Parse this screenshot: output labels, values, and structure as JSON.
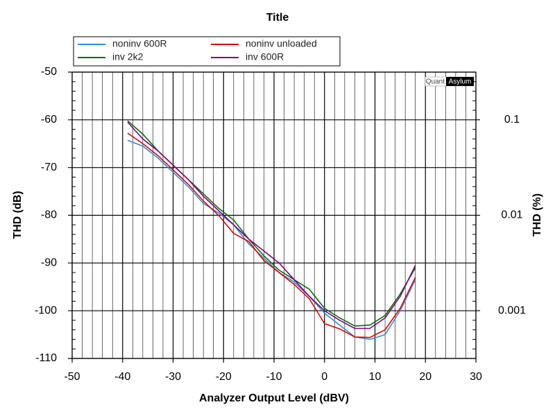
{
  "chart_data": {
    "type": "line",
    "title": "Title",
    "xlabel": "Analyzer Output Level (dBV)",
    "ylabel": "THD (dB)",
    "y2label": "THD (%)",
    "watermark": [
      "Quant",
      "Asylum"
    ],
    "x": [
      -39,
      -36,
      -33,
      -30,
      -27,
      -24,
      -21,
      -18,
      -15,
      -12,
      -9,
      -6,
      -3,
      0,
      3,
      6,
      9,
      12,
      15,
      18
    ],
    "series": [
      {
        "name": "noninv 600R",
        "color": "#2a8fdc",
        "values": [
          -64.3,
          -65.5,
          -68,
          -71,
          -74,
          -77.5,
          -79.5,
          -82,
          -86,
          -89,
          -92,
          -94,
          -97,
          -100.5,
          -103,
          -105.5,
          -106,
          -105,
          -100,
          -93.5
        ]
      },
      {
        "name": "noninv unloaded",
        "color": "#e00000",
        "values": [
          -62.8,
          -65,
          -67.5,
          -70.5,
          -73.5,
          -77,
          -80,
          -83.8,
          -85.5,
          -89.5,
          -92,
          -94.5,
          -97.5,
          -102.7,
          -103.8,
          -105.5,
          -105.6,
          -104,
          -99.5,
          -93
        ]
      },
      {
        "name": "inv 2k2",
        "color": "#007000",
        "values": [
          -60.2,
          -63,
          -66.5,
          -69.5,
          -72.5,
          -75.5,
          -78.5,
          -81,
          -85,
          -88.5,
          -91.5,
          -93.5,
          -95.5,
          -99.5,
          -101.5,
          -103.2,
          -103,
          -101,
          -96.5,
          -91
        ]
      },
      {
        "name": "inv 600R",
        "color": "#800080",
        "values": [
          -60.5,
          -64,
          -66.5,
          -69.5,
          -72.5,
          -76,
          -79,
          -82,
          -85,
          -87.5,
          -90,
          -93.5,
          -97,
          -100,
          -102,
          -103.7,
          -103.7,
          -101.5,
          -97,
          -90.5
        ]
      }
    ],
    "xlim": [
      -50,
      30
    ],
    "xticks": [
      -50,
      -40,
      -30,
      -20,
      -10,
      0,
      10,
      20,
      30
    ],
    "xminorticks": [
      -48,
      -46,
      -44,
      -42,
      -38,
      -36,
      -34,
      -32,
      -28,
      -26,
      -24,
      -22,
      -18,
      -16,
      -14,
      -12,
      -8,
      -6,
      -4,
      -2,
      2,
      4,
      6,
      8,
      12,
      14,
      16,
      18,
      22,
      24,
      26,
      28
    ],
    "ylim": [
      -110,
      -50
    ],
    "yticks": [
      -110,
      -100,
      -90,
      -80,
      -70,
      -60,
      -50
    ],
    "yminorticks": [
      -108,
      -106,
      -104,
      -102,
      -98,
      -96,
      -94,
      -92,
      -88,
      -86,
      -84,
      -82,
      -78,
      -76,
      -74,
      -72,
      -68,
      -66,
      -64,
      -62,
      -58,
      -56,
      -54,
      -52
    ],
    "y2lim": [
      0.000316,
      0.316
    ],
    "y2ticks": [
      0.001,
      0.01,
      0.1
    ],
    "y2log": true,
    "grid": true,
    "legend": "top"
  }
}
